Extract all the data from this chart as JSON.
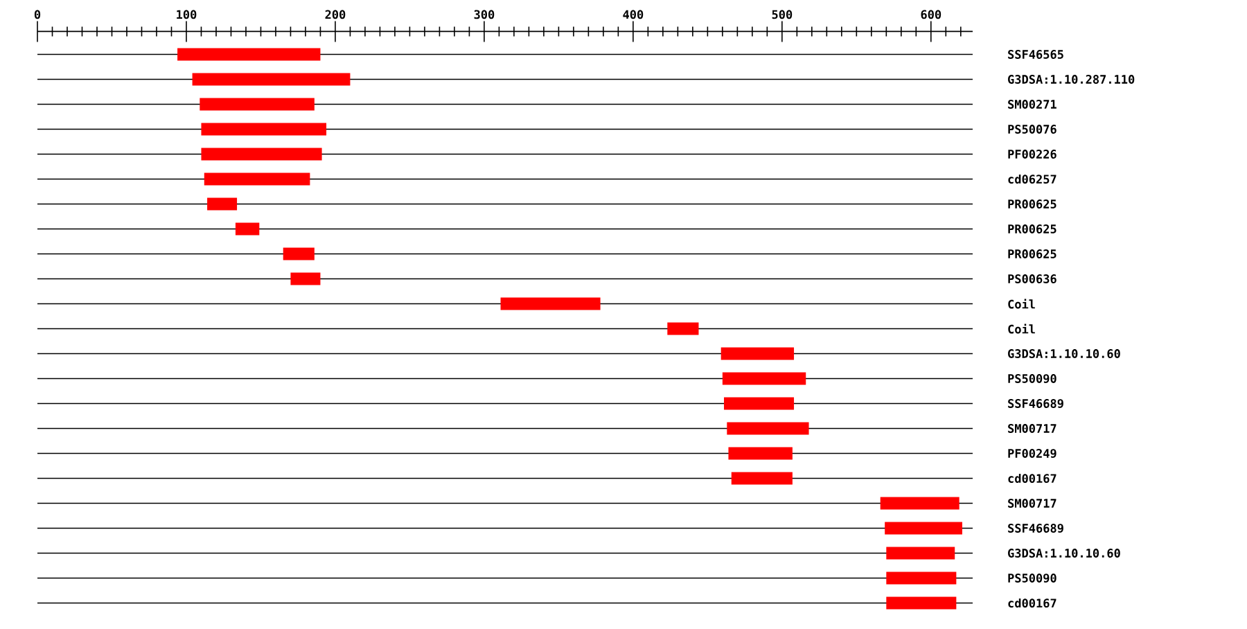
{
  "chart_data": {
    "type": "bar",
    "orientation": "horizontal",
    "categories": [
      "SSF46565",
      "G3DSA:1.10.287.110",
      "SM00271",
      "PS50076",
      "PF00226",
      "cd06257",
      "PR00625",
      "PR00625",
      "PR00625",
      "PS00636",
      "Coil",
      "Coil",
      "G3DSA:1.10.10.60",
      "PS50090",
      "SSF46689",
      "SM00717",
      "PF00249",
      "cd00167",
      "SM00717",
      "SSF46689",
      "G3DSA:1.10.10.60",
      "PS50090",
      "cd00167"
    ],
    "base": [
      94,
      104,
      109,
      110,
      110,
      112,
      114,
      133,
      165,
      170,
      311,
      423,
      459,
      460,
      461,
      463,
      464,
      466,
      566,
      569,
      570,
      570,
      570
    ],
    "values": [
      96,
      106,
      77,
      84,
      81,
      71,
      20,
      16,
      21,
      20,
      67,
      21,
      49,
      56,
      47,
      55,
      43,
      41,
      53,
      52,
      46,
      47,
      47
    ],
    "color": "#ff0000",
    "xlim": [
      0,
      628
    ],
    "xticks": [
      0,
      {
        "value": 10,
        "label": null
      },
      {
        "value": 20,
        "label": null
      },
      {
        "value": 30,
        "label": null
      },
      {
        "value": 40,
        "label": null
      },
      {
        "value": 50,
        "label": null
      },
      {
        "value": 60,
        "label": null
      },
      {
        "value": 70,
        "label": null
      },
      {
        "value": 80,
        "label": null
      },
      {
        "value": 90,
        "label": null
      },
      100,
      {
        "value": 110,
        "label": null
      },
      {
        "value": 120,
        "label": null
      },
      {
        "value": 130,
        "label": null
      },
      {
        "value": 140,
        "label": null
      },
      {
        "value": 150,
        "label": null
      },
      {
        "value": 160,
        "label": null
      },
      {
        "value": 170,
        "label": null
      },
      {
        "value": 180,
        "label": null
      },
      {
        "value": 190,
        "label": null
      },
      200,
      {
        "value": 210,
        "label": null
      },
      {
        "value": 220,
        "label": null
      },
      {
        "value": 230,
        "label": null
      },
      {
        "value": 240,
        "label": null
      },
      {
        "value": 250,
        "label": null
      },
      {
        "value": 260,
        "label": null
      },
      {
        "value": 270,
        "label": null
      },
      {
        "value": 280,
        "label": null
      },
      {
        "value": 290,
        "label": null
      },
      300,
      {
        "value": 310,
        "label": null
      },
      {
        "value": 320,
        "label": null
      },
      {
        "value": 330,
        "label": null
      },
      {
        "value": 340,
        "label": null
      },
      {
        "value": 350,
        "label": null
      },
      {
        "value": 360,
        "label": null
      },
      {
        "value": 370,
        "label": null
      },
      {
        "value": 380,
        "label": null
      },
      {
        "value": 390,
        "label": null
      },
      400,
      {
        "value": 410,
        "label": null
      },
      {
        "value": 420,
        "label": null
      },
      {
        "value": 430,
        "label": null
      },
      {
        "value": 440,
        "label": null
      },
      {
        "value": 450,
        "label": null
      },
      {
        "value": 460,
        "label": null
      },
      {
        "value": 470,
        "label": null
      },
      {
        "value": 480,
        "label": null
      },
      {
        "value": 490,
        "label": null
      },
      500,
      {
        "value": 510,
        "label": null
      },
      {
        "value": 520,
        "label": null
      },
      {
        "value": 530,
        "label": null
      },
      {
        "value": 540,
        "label": null
      },
      {
        "value": 550,
        "label": null
      },
      {
        "value": 560,
        "label": null
      },
      {
        "value": 570,
        "label": null
      },
      {
        "value": 580,
        "label": null
      },
      {
        "value": 590,
        "label": null
      },
      600,
      {
        "value": 610,
        "label": null
      },
      {
        "value": 620,
        "label": null
      }
    ],
    "grid": "y"
  }
}
